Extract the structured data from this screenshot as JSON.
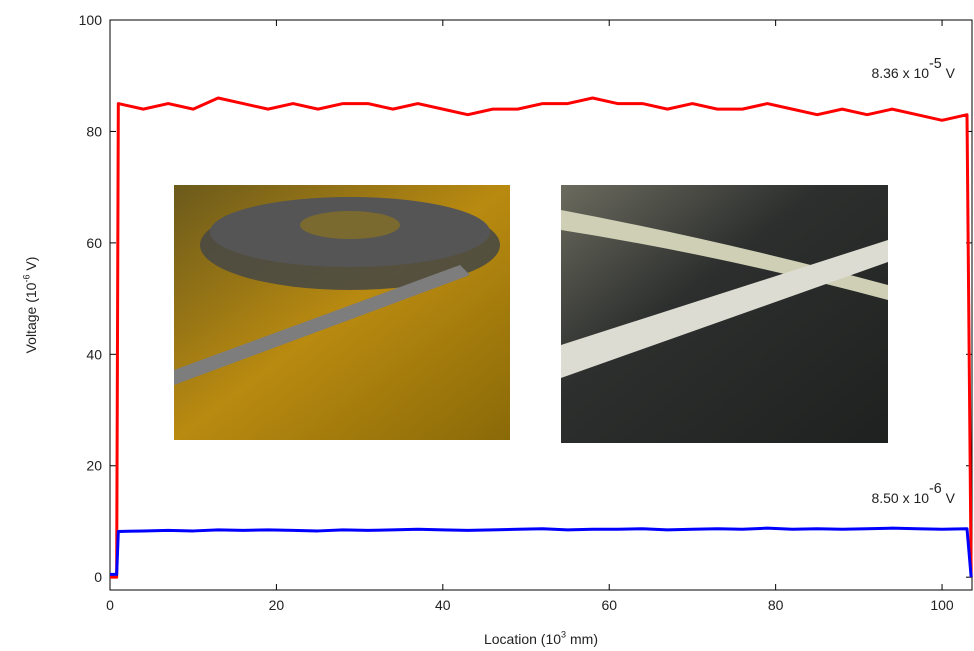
{
  "chart_data": {
    "type": "line",
    "xlabel": [
      "Location (10",
      "3",
      " mm)"
    ],
    "ylabel": [
      "Voltage (10",
      "-6",
      " V)"
    ],
    "annotations": [
      [
        "8.36 x 10",
        "-5",
        " V"
      ],
      [
        "8.50 x 10",
        "-6",
        " V"
      ]
    ],
    "x": [
      0,
      0.8,
      1,
      4,
      7,
      10,
      13,
      16,
      19,
      22,
      25,
      28,
      31,
      34,
      37,
      40,
      43,
      46,
      49,
      52,
      55,
      58,
      61,
      64,
      67,
      70,
      73,
      76,
      79,
      82,
      85,
      88,
      91,
      94,
      97,
      100,
      103,
      103.5
    ],
    "series": [
      {
        "color": "#ff0000",
        "values": [
          0,
          0,
          85,
          84,
          85,
          84,
          86,
          85,
          84,
          85,
          84,
          85,
          85,
          84,
          85,
          84,
          83,
          84,
          84,
          85,
          85,
          86,
          85,
          85,
          84,
          85,
          84,
          84,
          85,
          84,
          83,
          84,
          83,
          84,
          83,
          82,
          83,
          0
        ]
      },
      {
        "color": "#0000ff",
        "values": [
          0.5,
          0.5,
          8.2,
          8.3,
          8.4,
          8.3,
          8.5,
          8.4,
          8.5,
          8.4,
          8.3,
          8.5,
          8.4,
          8.5,
          8.6,
          8.5,
          8.4,
          8.5,
          8.6,
          8.7,
          8.5,
          8.6,
          8.6,
          8.7,
          8.5,
          8.6,
          8.7,
          8.6,
          8.8,
          8.6,
          8.7,
          8.6,
          8.7,
          8.8,
          8.7,
          8.6,
          8.7,
          0
        ]
      }
    ],
    "xlim": [
      0,
      103.6
    ],
    "ylim": [
      -2.3,
      100
    ],
    "xticks": [
      0,
      20,
      40,
      60,
      80,
      100
    ],
    "yticks": [
      0,
      20,
      40,
      60,
      80,
      100
    ]
  }
}
